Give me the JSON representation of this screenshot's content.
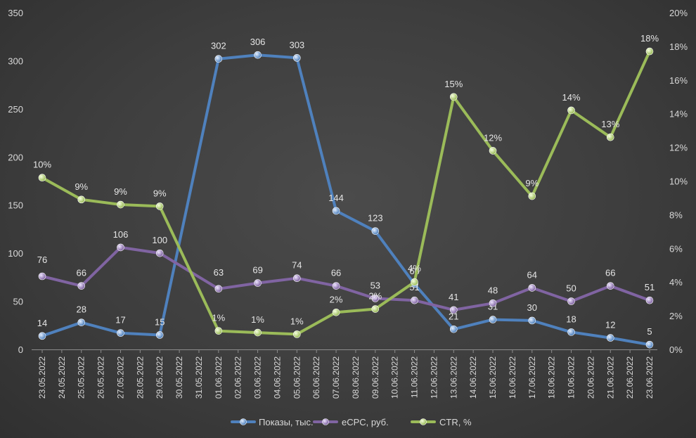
{
  "chart_data": {
    "type": "line",
    "title": "",
    "categories": [
      "23.05.2022",
      "24.05.2022",
      "25.05.2022",
      "26.05.2022",
      "27.05.2022",
      "28.05.2022",
      "29.05.2022",
      "30.05.2022",
      "31.05.2022",
      "01.06.2022",
      "02.06.2022",
      "03.06.2022",
      "04.06.2022",
      "05.06.2022",
      "06.06.2022",
      "07.06.2022",
      "08.06.2022",
      "09.06.2022",
      "10.06.2022",
      "11.06.2022",
      "12.06.2022",
      "13.06.2022",
      "14.06.2022",
      "15.06.2022",
      "16.06.2022",
      "17.06.2022",
      "18.06.2022",
      "19.06.2022",
      "20.06.2022",
      "21.06.2022",
      "22.06.2022",
      "23.06.2022"
    ],
    "series": [
      {
        "name": "Показы, тыс.",
        "axis": "left",
        "color": "#4f81bd",
        "points": [
          {
            "x": "23.05.2022",
            "y": 14,
            "label": "14"
          },
          {
            "x": "25.05.2022",
            "y": 28,
            "label": "28"
          },
          {
            "x": "27.05.2022",
            "y": 17,
            "label": "17"
          },
          {
            "x": "29.05.2022",
            "y": 15,
            "label": "15"
          },
          {
            "x": "01.06.2022",
            "y": 302,
            "label": "302"
          },
          {
            "x": "03.06.2022",
            "y": 306,
            "label": "306"
          },
          {
            "x": "05.06.2022",
            "y": 303,
            "label": "303"
          },
          {
            "x": "07.06.2022",
            "y": 144,
            "label": "144"
          },
          {
            "x": "09.06.2022",
            "y": 123,
            "label": "123"
          },
          {
            "x": "11.06.2022",
            "y": 68,
            "label": "68"
          },
          {
            "x": "13.06.2022",
            "y": 21,
            "label": "21"
          },
          {
            "x": "15.06.2022",
            "y": 31,
            "label": "31"
          },
          {
            "x": "17.06.2022",
            "y": 30,
            "label": "30"
          },
          {
            "x": "19.06.2022",
            "y": 18,
            "label": "18"
          },
          {
            "x": "21.06.2022",
            "y": 12,
            "label": "12"
          },
          {
            "x": "23.06.2022",
            "y": 5,
            "label": "5"
          }
        ]
      },
      {
        "name": "eCPC, руб.",
        "axis": "left",
        "color": "#8064a2",
        "points": [
          {
            "x": "23.05.2022",
            "y": 76,
            "label": "76"
          },
          {
            "x": "25.05.2022",
            "y": 66,
            "label": "66"
          },
          {
            "x": "27.05.2022",
            "y": 106,
            "label": "106"
          },
          {
            "x": "29.05.2022",
            "y": 100,
            "label": "100"
          },
          {
            "x": "01.06.2022",
            "y": 63,
            "label": "63"
          },
          {
            "x": "03.06.2022",
            "y": 69,
            "label": "69"
          },
          {
            "x": "05.06.2022",
            "y": 74,
            "label": "74"
          },
          {
            "x": "07.06.2022",
            "y": 66,
            "label": "66"
          },
          {
            "x": "09.06.2022",
            "y": 53,
            "label": "53"
          },
          {
            "x": "11.06.2022",
            "y": 51,
            "label": "51"
          },
          {
            "x": "13.06.2022",
            "y": 41,
            "label": "41"
          },
          {
            "x": "15.06.2022",
            "y": 48,
            "label": "48"
          },
          {
            "x": "17.06.2022",
            "y": 64,
            "label": "64"
          },
          {
            "x": "19.06.2022",
            "y": 50,
            "label": "50"
          },
          {
            "x": "21.06.2022",
            "y": 66,
            "label": "66"
          },
          {
            "x": "23.06.2022",
            "y": 51,
            "label": "51"
          }
        ]
      },
      {
        "name": "CTR, %",
        "axis": "right",
        "color": "#9bbb59",
        "points": [
          {
            "x": "23.05.2022",
            "y": 10.2,
            "label": "10%"
          },
          {
            "x": "25.05.2022",
            "y": 8.9,
            "label": "9%"
          },
          {
            "x": "27.05.2022",
            "y": 8.6,
            "label": "9%"
          },
          {
            "x": "29.05.2022",
            "y": 8.5,
            "label": "9%"
          },
          {
            "x": "01.06.2022",
            "y": 1.1,
            "label": "1%"
          },
          {
            "x": "03.06.2022",
            "y": 1.0,
            "label": "1%"
          },
          {
            "x": "05.06.2022",
            "y": 0.9,
            "label": "1%"
          },
          {
            "x": "07.06.2022",
            "y": 2.2,
            "label": "2%"
          },
          {
            "x": "09.06.2022",
            "y": 2.4,
            "label": "2%"
          },
          {
            "x": "11.06.2022",
            "y": 4.0,
            "label": "4%"
          },
          {
            "x": "13.06.2022",
            "y": 15.0,
            "label": "15%"
          },
          {
            "x": "15.06.2022",
            "y": 11.8,
            "label": "12%"
          },
          {
            "x": "17.06.2022",
            "y": 9.1,
            "label": "9%"
          },
          {
            "x": "19.06.2022",
            "y": 14.2,
            "label": "14%"
          },
          {
            "x": "21.06.2022",
            "y": 12.6,
            "label": "13%"
          },
          {
            "x": "23.06.2022",
            "y": 17.7,
            "label": "18%"
          }
        ]
      }
    ],
    "y_left": {
      "min": 0,
      "max": 350,
      "step": 50,
      "ticks": [
        "0",
        "50",
        "100",
        "150",
        "200",
        "250",
        "300",
        "350"
      ]
    },
    "y_right": {
      "min": 0,
      "max": 20,
      "step": 2,
      "ticks": [
        "0%",
        "2%",
        "4%",
        "6%",
        "8%",
        "10%",
        "12%",
        "14%",
        "16%",
        "18%",
        "20%"
      ]
    },
    "grid": false,
    "legend_position": "bottom"
  }
}
